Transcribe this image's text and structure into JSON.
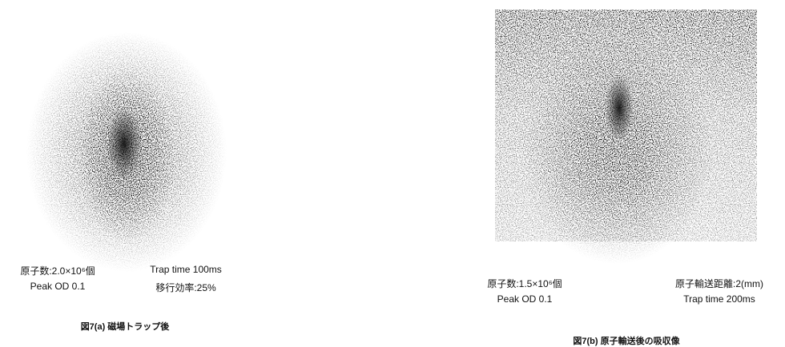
{
  "figures": [
    {
      "stats": [
        [
          "原子数:2.0×10⁶個",
          "Trap time 100ms"
        ],
        [
          "Peak OD 0.1",
          "移行効率:25%"
        ]
      ],
      "caption": "図7(a) 磁場トラップ後"
    },
    {
      "stats": [
        [
          "原子数:1.5×10⁶個",
          "原子輸送距離:2(mm)"
        ],
        [
          "Peak OD 0.1",
          "Trap time 200ms"
        ]
      ],
      "caption": "図7(b) 原子輸送後の吸収像"
    }
  ]
}
